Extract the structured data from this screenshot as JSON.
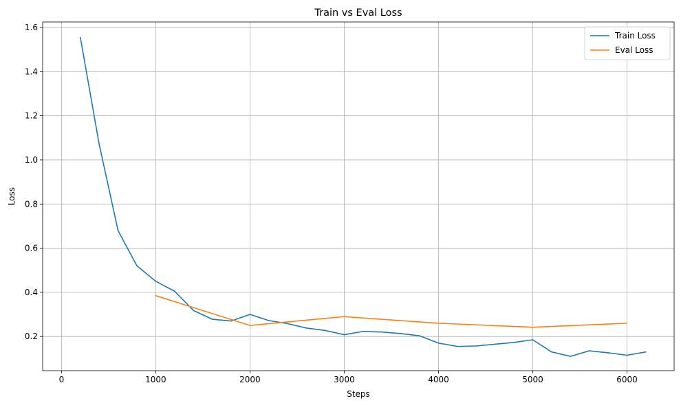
{
  "chart_data": {
    "type": "line",
    "title": "Train vs Eval Loss",
    "xlabel": "Steps",
    "ylabel": "Loss",
    "xlim": [
      -200,
      6500
    ],
    "ylim": [
      0.045,
      1.625
    ],
    "xticks": [
      0,
      1000,
      2000,
      3000,
      4000,
      5000,
      6000
    ],
    "yticks": [
      0.2,
      0.4,
      0.6,
      0.8,
      1.0,
      1.2,
      1.4,
      1.6
    ],
    "xtick_labels": [
      "0",
      "1000",
      "2000",
      "3000",
      "4000",
      "5000",
      "6000"
    ],
    "ytick_labels": [
      "0.2",
      "0.4",
      "0.6",
      "0.8",
      "1.0",
      "1.2",
      "1.4",
      "1.6"
    ],
    "grid": true,
    "legend_position": "top-right",
    "series": [
      {
        "name": "Train Loss",
        "color": "#1f77b4",
        "x": [
          200,
          400,
          600,
          800,
          1000,
          1200,
          1400,
          1600,
          1800,
          2000,
          2200,
          2400,
          2600,
          2800,
          3000,
          3200,
          3400,
          3600,
          3800,
          4000,
          4200,
          4400,
          4600,
          4800,
          5000,
          5200,
          5400,
          5600,
          5800,
          6000,
          6200
        ],
        "y": [
          1.555,
          1.07,
          0.68,
          0.52,
          0.45,
          0.405,
          0.318,
          0.278,
          0.27,
          0.3,
          0.272,
          0.258,
          0.238,
          0.227,
          0.208,
          0.223,
          0.22,
          0.213,
          0.203,
          0.17,
          0.155,
          0.157,
          0.165,
          0.173,
          0.185,
          0.13,
          0.11,
          0.135,
          0.126,
          0.115,
          0.13
        ]
      },
      {
        "name": "Eval Loss",
        "color": "#ff7f0e",
        "x": [
          1000,
          2000,
          3000,
          4000,
          5000,
          6000
        ],
        "y": [
          0.385,
          0.25,
          0.29,
          0.26,
          0.242,
          0.26
        ]
      }
    ]
  }
}
